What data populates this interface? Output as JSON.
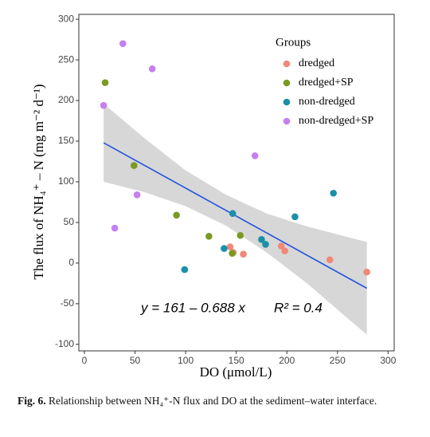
{
  "chart_data": {
    "type": "scatter",
    "ylabel": "The flux of NH₄⁺ – N (mg m⁻² d⁻¹)",
    "xlabel": "DO (μmol/L)",
    "legend_title": "Groups",
    "xlim": [
      -5.5,
      306
    ],
    "ylim": [
      -108,
      306
    ],
    "xticks": [
      0,
      50,
      100,
      150,
      200,
      250,
      300
    ],
    "yticks": [
      -100,
      -50,
      0,
      50,
      100,
      150,
      200,
      250,
      300
    ],
    "series": [
      {
        "name": "dredged",
        "color": "#f08878",
        "x": [
          144,
          147,
          157,
          194.5,
          198,
          242.5,
          279
        ],
        "values": [
          20,
          13,
          11,
          21,
          15,
          4,
          -11
        ]
      },
      {
        "name": "dredged+SP",
        "color": "#7a9a22",
        "x": [
          20.5,
          49,
          91,
          123,
          146,
          154
        ],
        "values": [
          222,
          120,
          59,
          33,
          12,
          34
        ]
      },
      {
        "name": "non-dredged",
        "color": "#1a90a8",
        "x": [
          99,
          138,
          146.5,
          175,
          179,
          208,
          246
        ],
        "values": [
          -8,
          18,
          61,
          29,
          23,
          57,
          86
        ]
      },
      {
        "name": "non-dredged+SP",
        "color": "#c67ff0",
        "x": [
          38,
          67,
          19,
          52,
          30,
          168.5
        ],
        "values": [
          270,
          239,
          194,
          84,
          43,
          132
        ]
      }
    ],
    "fit_line": {
      "color": "#2255dd",
      "x": [
        19,
        279
      ],
      "values": [
        148,
        -31
      ]
    },
    "band": {
      "color": "#d3d3d3",
      "x": [
        19,
        60,
        100,
        140,
        180,
        220,
        260,
        279
      ],
      "upper": [
        196,
        153,
        114,
        84,
        61,
        45,
        32,
        26
      ],
      "lower": [
        100,
        87,
        70,
        46,
        13,
        -25,
        -68,
        -88
      ]
    },
    "annotations": [
      "y = 161 – 0.688 x",
      "R² = 0.4"
    ]
  },
  "caption": {
    "label": "Fig. 6.",
    "text": "Relationship between NH₄⁺-N flux and DO at the sediment–water interface."
  }
}
